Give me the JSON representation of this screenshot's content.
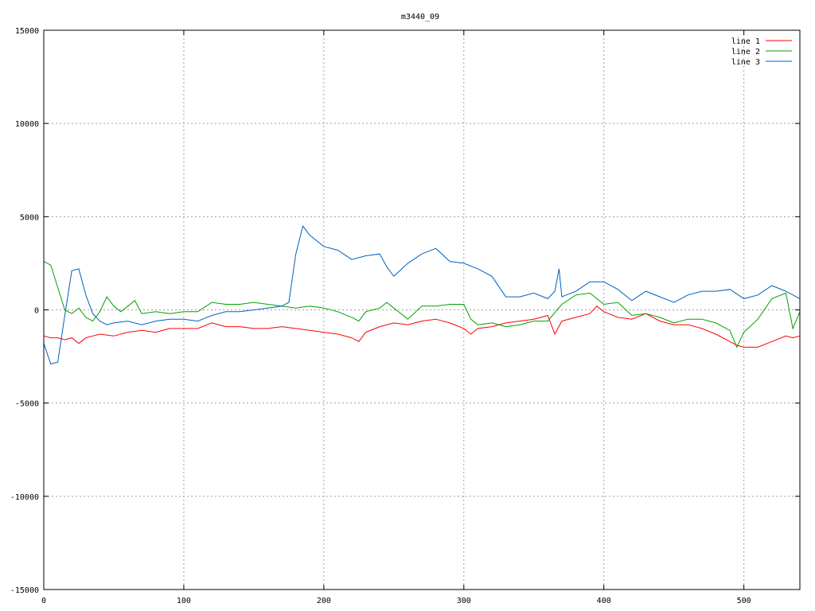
{
  "chart_data": {
    "type": "line",
    "title": "m3440_09",
    "xlabel": "",
    "ylabel": "",
    "xlim": [
      0,
      540
    ],
    "ylim": [
      -15000,
      15000
    ],
    "x_ticks": [
      0,
      100,
      200,
      300,
      400,
      500
    ],
    "y_ticks": [
      -15000,
      -10000,
      -5000,
      0,
      5000,
      10000,
      15000
    ],
    "grid": true,
    "legend_position": "top-right",
    "series": [
      {
        "name": "line 1",
        "color": "#ff0000",
        "x": [
          0,
          5,
          10,
          15,
          20,
          25,
          30,
          35,
          40,
          50,
          60,
          70,
          80,
          90,
          100,
          110,
          120,
          130,
          140,
          150,
          160,
          170,
          180,
          190,
          200,
          210,
          220,
          225,
          230,
          240,
          250,
          260,
          270,
          280,
          290,
          300,
          305,
          310,
          320,
          330,
          340,
          350,
          360,
          365,
          370,
          380,
          390,
          395,
          400,
          410,
          420,
          430,
          440,
          450,
          460,
          470,
          480,
          490,
          495,
          500,
          510,
          520,
          530,
          535,
          540
        ],
        "y": [
          -1400,
          -1500,
          -1500,
          -1600,
          -1500,
          -1800,
          -1500,
          -1400,
          -1300,
          -1400,
          -1200,
          -1100,
          -1200,
          -1000,
          -1000,
          -1000,
          -700,
          -900,
          -900,
          -1000,
          -1000,
          -900,
          -1000,
          -1100,
          -1200,
          -1300,
          -1500,
          -1700,
          -1200,
          -900,
          -700,
          -800,
          -600,
          -500,
          -700,
          -1000,
          -1300,
          -1000,
          -900,
          -700,
          -600,
          -500,
          -300,
          -1300,
          -600,
          -400,
          -200,
          200,
          -100,
          -400,
          -500,
          -200,
          -600,
          -800,
          -800,
          -1000,
          -1300,
          -1700,
          -1900,
          -2000,
          -2000,
          -1700,
          -1400,
          -1500,
          -1400
        ]
      },
      {
        "name": "line 2",
        "color": "#00a000",
        "x": [
          0,
          5,
          10,
          15,
          20,
          25,
          30,
          35,
          40,
          45,
          50,
          55,
          60,
          65,
          70,
          80,
          90,
          100,
          110,
          120,
          130,
          140,
          150,
          160,
          170,
          180,
          190,
          200,
          210,
          220,
          225,
          230,
          240,
          245,
          250,
          260,
          270,
          280,
          290,
          300,
          305,
          310,
          320,
          330,
          340,
          350,
          360,
          370,
          380,
          390,
          400,
          410,
          420,
          430,
          440,
          450,
          460,
          470,
          480,
          490,
          495,
          500,
          510,
          520,
          530,
          535,
          540
        ],
        "y": [
          2600,
          2400,
          1200,
          0,
          -200,
          100,
          -400,
          -600,
          -100,
          700,
          200,
          -100,
          200,
          500,
          -200,
          -100,
          -200,
          -100,
          -100,
          400,
          300,
          300,
          400,
          300,
          200,
          100,
          200,
          100,
          -100,
          -400,
          -600,
          -100,
          100,
          400,
          100,
          -500,
          200,
          200,
          300,
          300,
          -500,
          -800,
          -700,
          -900,
          -800,
          -600,
          -600,
          300,
          800,
          900,
          300,
          400,
          -300,
          -200,
          -400,
          -700,
          -500,
          -500,
          -700,
          -1100,
          -2000,
          -1200,
          -500,
          600,
          900,
          -1000,
          -100
        ]
      },
      {
        "name": "line 3",
        "color": "#0060c0",
        "x": [
          0,
          5,
          10,
          15,
          20,
          25,
          30,
          35,
          40,
          45,
          50,
          60,
          70,
          80,
          90,
          100,
          110,
          120,
          130,
          140,
          150,
          160,
          170,
          175,
          180,
          185,
          190,
          200,
          210,
          220,
          230,
          240,
          245,
          250,
          260,
          270,
          280,
          290,
          300,
          310,
          320,
          330,
          340,
          350,
          360,
          365,
          368,
          370,
          380,
          390,
          400,
          410,
          420,
          430,
          440,
          450,
          460,
          470,
          480,
          490,
          500,
          510,
          520,
          530,
          540
        ],
        "y": [
          -1800,
          -2900,
          -2800,
          -300,
          2100,
          2200,
          800,
          -200,
          -600,
          -800,
          -700,
          -600,
          -800,
          -600,
          -500,
          -500,
          -600,
          -300,
          -100,
          -100,
          0,
          100,
          200,
          400,
          3000,
          4500,
          4000,
          3400,
          3200,
          2700,
          2900,
          3000,
          2300,
          1800,
          2500,
          3000,
          3300,
          2600,
          2500,
          2200,
          1800,
          700,
          700,
          900,
          600,
          1000,
          2200,
          700,
          1000,
          1500,
          1500,
          1100,
          500,
          1000,
          700,
          400,
          800,
          1000,
          1000,
          1100,
          600,
          800,
          1300,
          1000,
          600
        ]
      }
    ]
  }
}
